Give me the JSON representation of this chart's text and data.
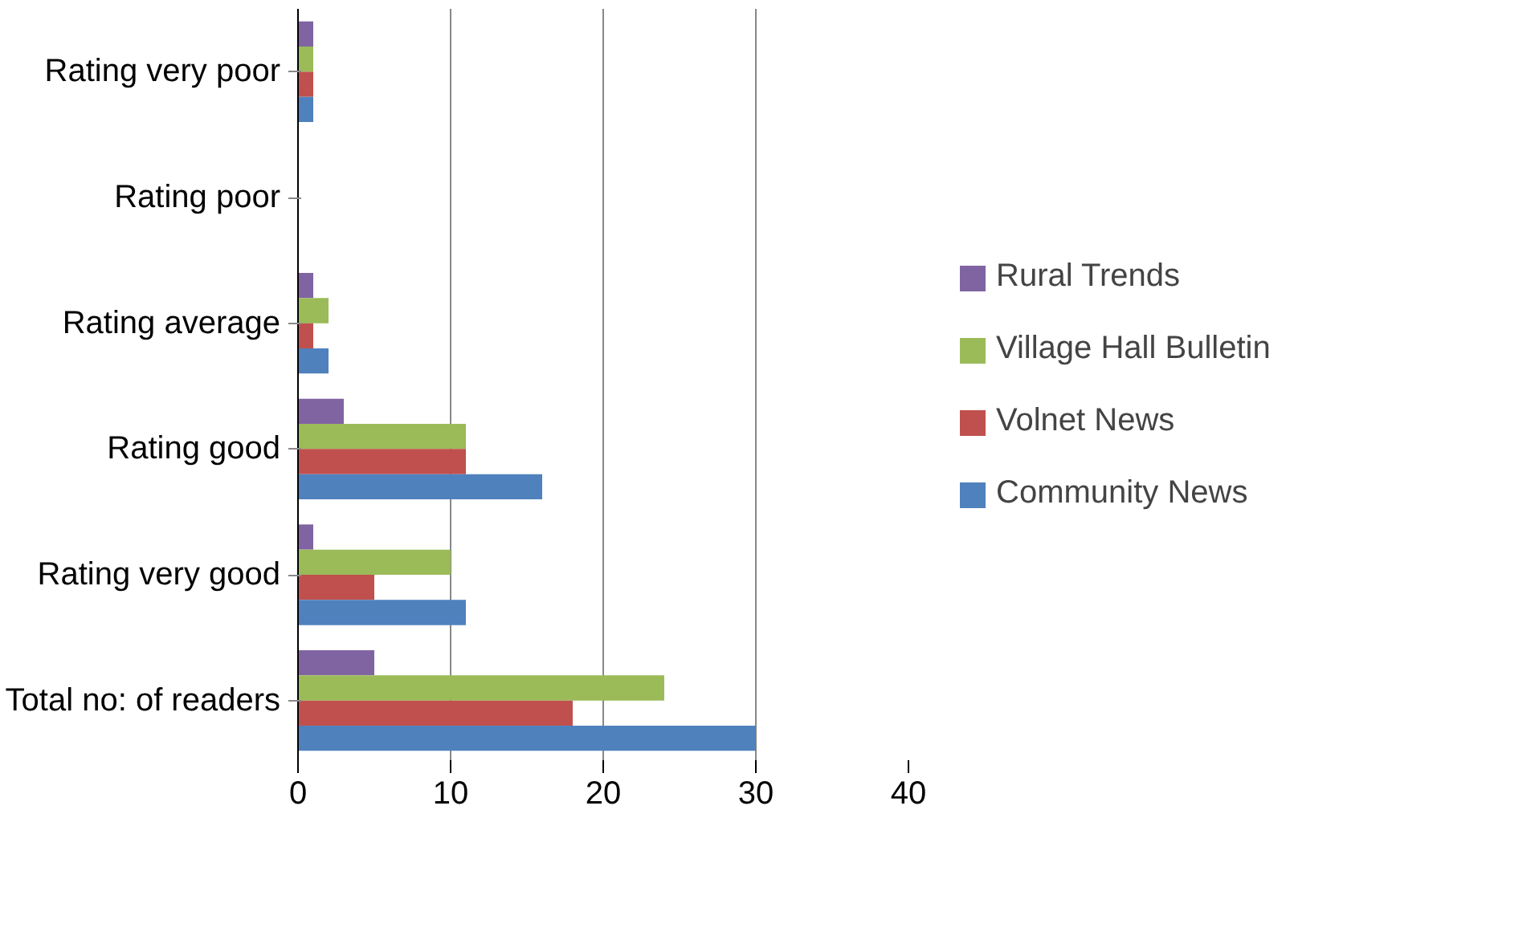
{
  "chart_data": {
    "type": "bar",
    "orientation": "horizontal",
    "categories": [
      "Rating very poor",
      "Rating poor",
      "Rating average",
      "Rating good",
      "Rating very good",
      "Total no: of readers"
    ],
    "series": [
      {
        "name": "Rural Trends",
        "color": "#8064a2",
        "values": [
          1,
          0,
          1,
          3,
          1,
          5
        ]
      },
      {
        "name": "Village Hall Bulletin",
        "color": "#9bbb59",
        "values": [
          1,
          0,
          2,
          11,
          10,
          24
        ]
      },
      {
        "name": "Volnet News",
        "color": "#c0504d",
        "values": [
          1,
          0,
          1,
          11,
          5,
          18
        ]
      },
      {
        "name": "Community News",
        "color": "#4f81bd",
        "values": [
          1,
          0,
          2,
          16,
          11,
          30
        ]
      }
    ],
    "xlim": [
      0,
      40
    ],
    "xticks": [
      0,
      10,
      20,
      30,
      40
    ],
    "grid": "x",
    "legend": "right"
  }
}
